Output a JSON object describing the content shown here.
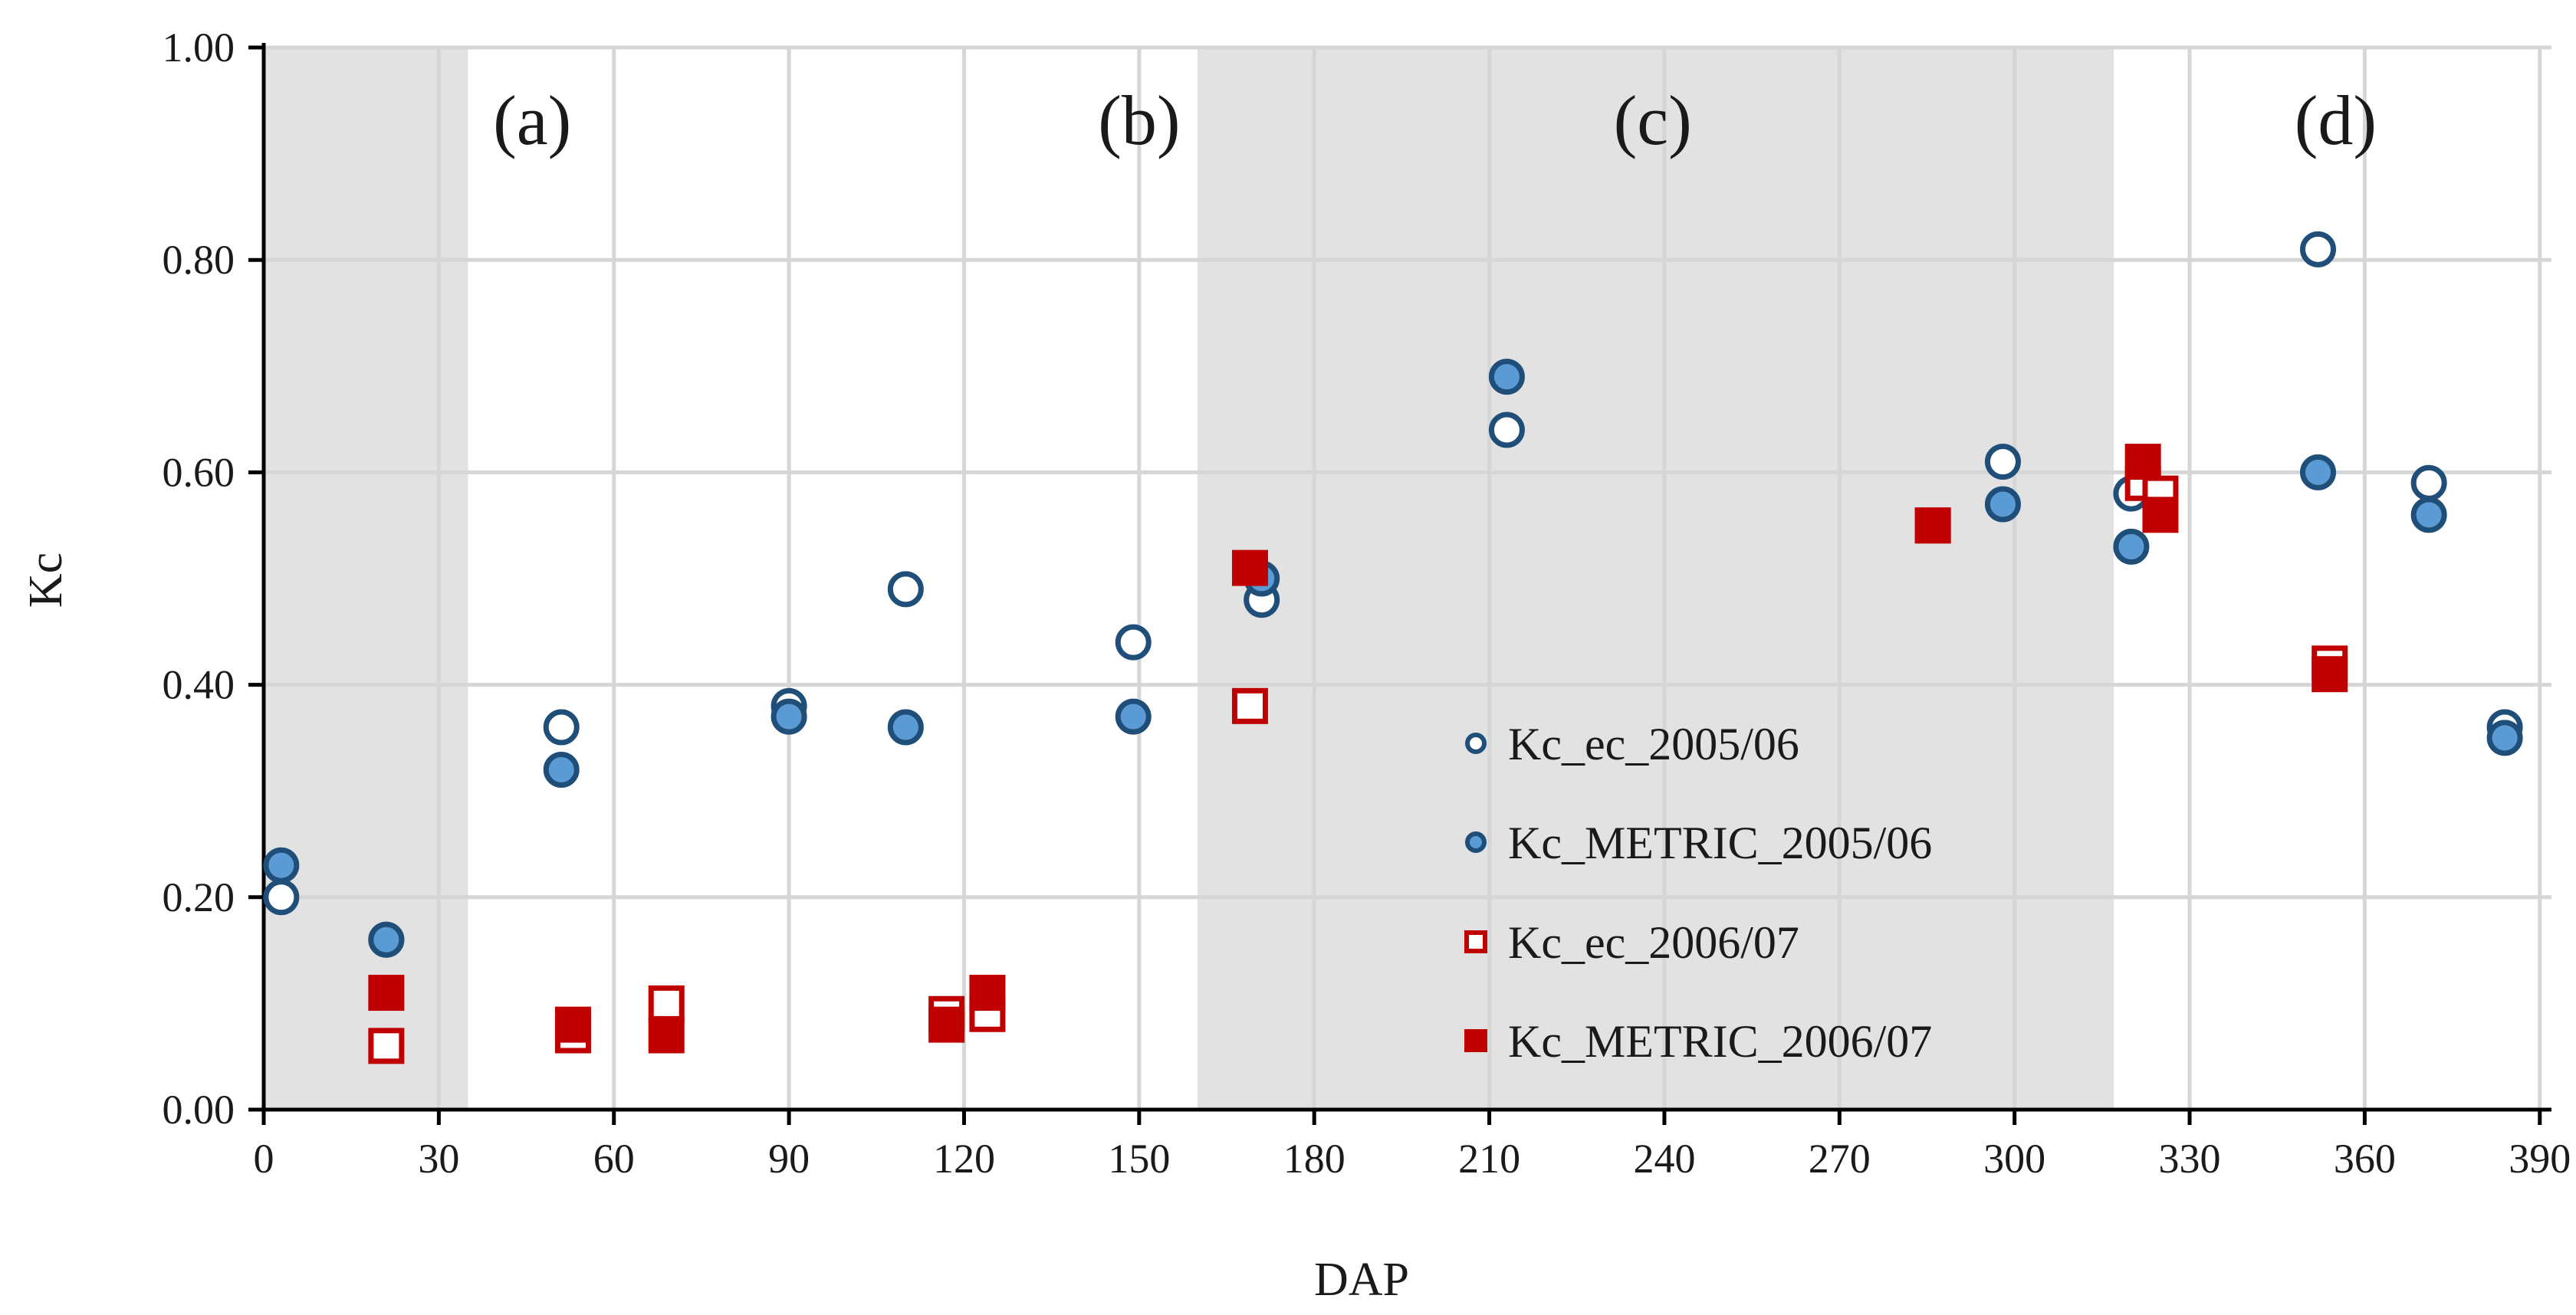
{
  "colors": {
    "shade": "#e2e2e2",
    "grid": "#d6d6d6",
    "axis": "#000000",
    "blue_edge": "#1f4e79",
    "blue_fill": "#5b9bd5",
    "red": "#c00000"
  },
  "chart_data": {
    "type": "scatter",
    "title": "",
    "xlabel": "DAP",
    "ylabel": "Kc",
    "xlim": [
      0,
      392
    ],
    "ylim": [
      0,
      1.0
    ],
    "x_ticks": [
      0,
      30,
      60,
      90,
      120,
      150,
      180,
      210,
      240,
      270,
      300,
      330,
      360,
      390
    ],
    "y_ticks": [
      "0.00",
      "0.20",
      "0.40",
      "0.60",
      "0.80",
      "1.00"
    ],
    "grid": true,
    "legend_position": "center-right",
    "stages": [
      {
        "label": "(a)",
        "x_start": 0,
        "x_end": 35,
        "shaded": true
      },
      {
        "label": "(b)",
        "x_start": 35,
        "x_end": 160,
        "shaded": false
      },
      {
        "label": "(c)",
        "x_start": 160,
        "x_end": 317,
        "shaded": true
      },
      {
        "label": "(d)",
        "x_start": 317,
        "x_end": 392,
        "shaded": false
      }
    ],
    "series": [
      {
        "name": "Kc_ec_2005/06",
        "marker": "circle-open",
        "x": [
          3,
          21,
          51,
          90,
          110,
          149,
          171,
          213,
          298,
          320,
          352,
          371,
          384
        ],
        "y": [
          0.2,
          0.16,
          0.36,
          0.38,
          0.49,
          0.44,
          0.48,
          0.64,
          0.61,
          0.58,
          0.81,
          0.59,
          0.36
        ]
      },
      {
        "name": "Kc_METRIC_2005/06",
        "marker": "circle-filled",
        "x": [
          3,
          21,
          51,
          90,
          110,
          149,
          171,
          213,
          298,
          320,
          352,
          371,
          384
        ],
        "y": [
          0.23,
          0.16,
          0.32,
          0.37,
          0.36,
          0.37,
          0.5,
          0.69,
          0.57,
          0.53,
          0.6,
          0.56,
          0.35
        ]
      },
      {
        "name": "Kc_ec_2006/07",
        "marker": "square-open",
        "x": [
          21,
          53,
          69,
          117,
          124,
          169,
          286,
          322,
          325,
          354
        ],
        "y": [
          0.06,
          0.07,
          0.1,
          0.09,
          0.09,
          0.38,
          0.55,
          0.59,
          0.58,
          0.42
        ]
      },
      {
        "name": "Kc_METRIC_2006/07",
        "marker": "square-filled",
        "x": [
          21,
          53,
          69,
          117,
          124,
          169,
          286,
          322,
          325,
          354
        ],
        "y": [
          0.11,
          0.08,
          0.07,
          0.08,
          0.11,
          0.51,
          0.55,
          0.61,
          0.56,
          0.41
        ]
      }
    ]
  }
}
